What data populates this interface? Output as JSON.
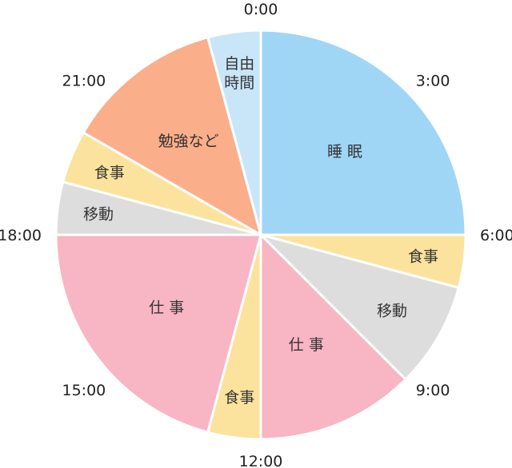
{
  "chart_data": {
    "type": "pie",
    "title": "",
    "unit": "hours",
    "start_angle_hour": 0,
    "direction": "clockwise",
    "slices": [
      {
        "label": "睡 眠",
        "lines": [
          "睡 眠"
        ],
        "start": 0.0,
        "end": 6.0,
        "color": "#9fd6f6"
      },
      {
        "label": "食事",
        "lines": [
          "食事"
        ],
        "start": 6.0,
        "end": 7.0,
        "color": "#fbe39d"
      },
      {
        "label": "移動",
        "lines": [
          "移動"
        ],
        "start": 7.0,
        "end": 9.0,
        "color": "#dddddd"
      },
      {
        "label": "仕 事",
        "lines": [
          "仕 事"
        ],
        "start": 9.0,
        "end": 12.0,
        "color": "#f8b5c4"
      },
      {
        "label": "食事",
        "lines": [
          "食事"
        ],
        "start": 12.0,
        "end": 13.0,
        "color": "#fbe39d"
      },
      {
        "label": "仕 事",
        "lines": [
          "仕 事"
        ],
        "start": 13.0,
        "end": 18.0,
        "color": "#f8b5c4"
      },
      {
        "label": "移動",
        "lines": [
          "移動"
        ],
        "start": 18.0,
        "end": 19.0,
        "color": "#dddddd"
      },
      {
        "label": "食事",
        "lines": [
          "食事"
        ],
        "start": 19.0,
        "end": 20.0,
        "color": "#fbe39d"
      },
      {
        "label": "勉強など",
        "lines": [
          "勉強など"
        ],
        "start": 20.0,
        "end": 23.0,
        "color": "#fbae8a"
      },
      {
        "label": "自由時間",
        "lines": [
          "自由",
          "時間"
        ],
        "start": 23.0,
        "end": 24.0,
        "color": "#c8e6f8"
      }
    ],
    "hour_labels": [
      {
        "text": "0:00",
        "hour": 0
      },
      {
        "text": "3:00",
        "hour": 3
      },
      {
        "text": "6:00",
        "hour": 6
      },
      {
        "text": "9:00",
        "hour": 9
      },
      {
        "text": "12:00",
        "hour": 12
      },
      {
        "text": "15:00",
        "hour": 15
      },
      {
        "text": "18:00",
        "hour": 18
      },
      {
        "text": "21:00",
        "hour": 21
      }
    ]
  }
}
